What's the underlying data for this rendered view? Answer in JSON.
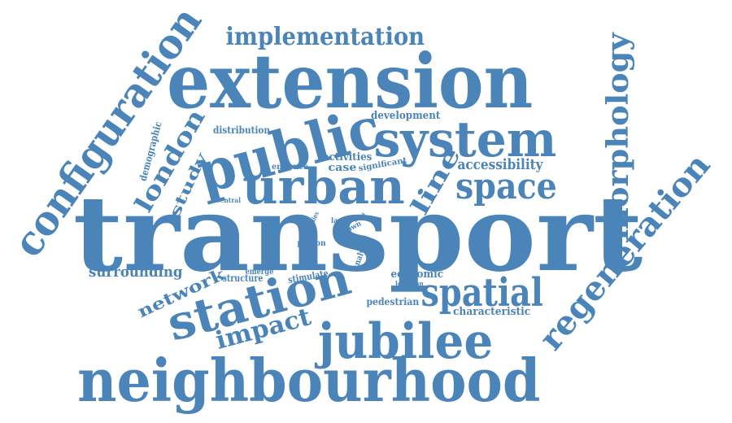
{
  "color": "#4a84b8",
  "background": "#ffffff",
  "words": [
    {
      "text": "transport"
    },
    {
      "text": "extension"
    },
    {
      "text": "neighbourhood"
    },
    {
      "text": "public"
    },
    {
      "text": "system"
    },
    {
      "text": "urban"
    },
    {
      "text": "jubilee"
    },
    {
      "text": "station"
    },
    {
      "text": "configuration"
    },
    {
      "text": "spatial"
    },
    {
      "text": "space"
    },
    {
      "text": "regeneration"
    },
    {
      "text": "morphology"
    },
    {
      "text": "implementation"
    },
    {
      "text": "london"
    },
    {
      "text": "line"
    },
    {
      "text": "impact"
    },
    {
      "text": "network"
    },
    {
      "text": "surrounding"
    },
    {
      "text": "accessibility"
    },
    {
      "text": "study"
    },
    {
      "text": "activities"
    },
    {
      "text": "characteristic"
    },
    {
      "text": "economic"
    },
    {
      "text": "pedestrian"
    },
    {
      "text": "development"
    },
    {
      "text": "distribution"
    },
    {
      "text": "demographic"
    },
    {
      "text": "structure"
    },
    {
      "text": "stimulate"
    },
    {
      "text": "emerge"
    },
    {
      "text": "case"
    },
    {
      "text": "enhance"
    },
    {
      "text": "significant"
    },
    {
      "text": "person"
    },
    {
      "text": "location"
    },
    {
      "text": "analysis"
    },
    {
      "text": "central"
    },
    {
      "text": "studies"
    },
    {
      "text": "land"
    },
    {
      "text": "town"
    },
    {
      "text": "result"
    },
    {
      "text": "area"
    }
  ]
}
